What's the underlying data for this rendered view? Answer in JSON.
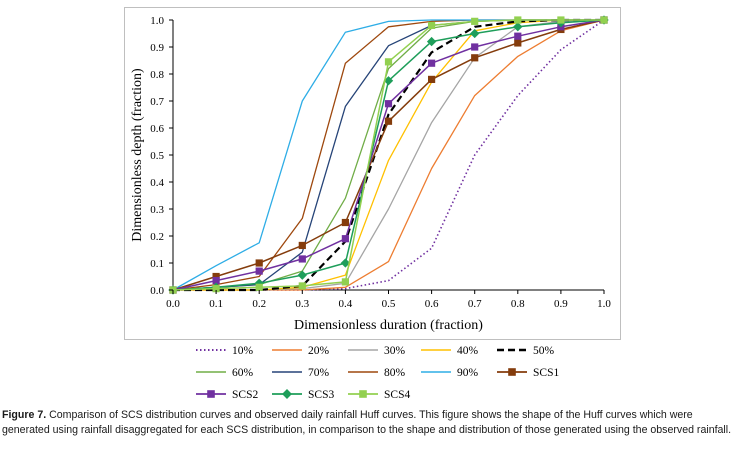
{
  "chart_data": {
    "type": "line",
    "title": "",
    "xlabel": "Dimensionless duration (fraction)",
    "ylabel": "Dimensionless depth (fraction)",
    "xlim": [
      0,
      1
    ],
    "ylim": [
      0,
      1
    ],
    "xticks": [
      "0.0",
      "0.1",
      "0.2",
      "0.3",
      "0.4",
      "0.5",
      "0.6",
      "0.7",
      "0.8",
      "0.9",
      "1.0"
    ],
    "yticks": [
      "0.0",
      "0.1",
      "0.2",
      "0.3",
      "0.4",
      "0.5",
      "0.6",
      "0.7",
      "0.8",
      "0.9",
      "1.0"
    ],
    "x": [
      0,
      0.1,
      0.2,
      0.3,
      0.4,
      0.5,
      0.6,
      0.7,
      0.8,
      0.9,
      1.0
    ],
    "legend_position": "bottom",
    "series": [
      {
        "name": "10%",
        "color": "#7030A0",
        "dash": "1.5,2.5",
        "width": 1.6,
        "marker": "none",
        "values": [
          0,
          0,
          0,
          0,
          0.005,
          0.035,
          0.155,
          0.5,
          0.72,
          0.89,
          1.0
        ]
      },
      {
        "name": "20%",
        "color": "#ED7D31",
        "dash": "",
        "width": 1.3,
        "marker": "none",
        "values": [
          0,
          0,
          0,
          0,
          0.01,
          0.105,
          0.45,
          0.72,
          0.865,
          0.96,
          1.0
        ]
      },
      {
        "name": "30%",
        "color": "#A5A5A5",
        "dash": "",
        "width": 1.3,
        "marker": "none",
        "values": [
          0,
          0,
          0,
          0.005,
          0.025,
          0.3,
          0.62,
          0.86,
          0.975,
          0.995,
          1.0
        ]
      },
      {
        "name": "40%",
        "color": "#FFC000",
        "dash": "",
        "width": 1.3,
        "marker": "none",
        "values": [
          0,
          0,
          0,
          0.01,
          0.055,
          0.48,
          0.77,
          0.96,
          0.99,
          1.0,
          1.0
        ]
      },
      {
        "name": "50%",
        "color": "#000000",
        "dash": "7,4",
        "width": 2.2,
        "marker": "none",
        "values": [
          0,
          0,
          0,
          0.015,
          0.18,
          0.65,
          0.88,
          0.975,
          0.995,
          1.0,
          1.0
        ]
      },
      {
        "name": "60%",
        "color": "#70AD47",
        "dash": "",
        "width": 1.3,
        "marker": "none",
        "values": [
          0,
          0.01,
          0.02,
          0.07,
          0.34,
          0.82,
          0.97,
          0.995,
          1.0,
          1.0,
          1.0
        ]
      },
      {
        "name": "70%",
        "color": "#264478",
        "dash": "",
        "width": 1.3,
        "marker": "none",
        "values": [
          0,
          0.01,
          0.02,
          0.14,
          0.68,
          0.905,
          0.98,
          0.995,
          1.0,
          1.0,
          1.0
        ]
      },
      {
        "name": "80%",
        "color": "#9E480E",
        "dash": "",
        "width": 1.3,
        "marker": "none",
        "values": [
          0,
          0.02,
          0.05,
          0.265,
          0.84,
          0.975,
          0.995,
          1.0,
          1.0,
          1.0,
          1.0
        ]
      },
      {
        "name": "90%",
        "color": "#2EADE6",
        "dash": "",
        "width": 1.3,
        "marker": "none",
        "values": [
          0,
          0.09,
          0.175,
          0.7,
          0.955,
          0.995,
          1.0,
          1.0,
          1.0,
          1.0,
          1.0
        ]
      },
      {
        "name": "SCS1",
        "color": "#843C0C",
        "dash": "",
        "width": 1.5,
        "marker": "square",
        "values": [
          0,
          0.05,
          0.1,
          0.165,
          0.25,
          0.625,
          0.78,
          0.86,
          0.915,
          0.965,
          1.0
        ]
      },
      {
        "name": "SCS2",
        "color": "#7030A0",
        "dash": "",
        "width": 1.5,
        "marker": "square",
        "values": [
          0,
          0.035,
          0.07,
          0.115,
          0.19,
          0.69,
          0.84,
          0.9,
          0.94,
          0.975,
          1.0
        ]
      },
      {
        "name": "SCS3",
        "color": "#1E9E5A",
        "dash": "",
        "width": 1.5,
        "marker": "diamond",
        "values": [
          0,
          0.01,
          0.025,
          0.055,
          0.1,
          0.775,
          0.92,
          0.95,
          0.975,
          0.99,
          1.0
        ]
      },
      {
        "name": "SCS4",
        "color": "#92D050",
        "dash": "",
        "width": 1.5,
        "marker": "square",
        "values": [
          0,
          0.005,
          0.01,
          0.015,
          0.03,
          0.845,
          0.98,
          0.995,
          1.0,
          1.0,
          1.0
        ]
      }
    ]
  },
  "caption": {
    "label": "Figure 7.",
    "text": "Comparison of SCS distribution curves and observed daily rainfall Huff curves. This figure shows the shape of the Huff curves which were generated using rainfall disaggregated for each SCS distribution, in comparison to the shape and distribution of those generated using the observed rainfall."
  }
}
